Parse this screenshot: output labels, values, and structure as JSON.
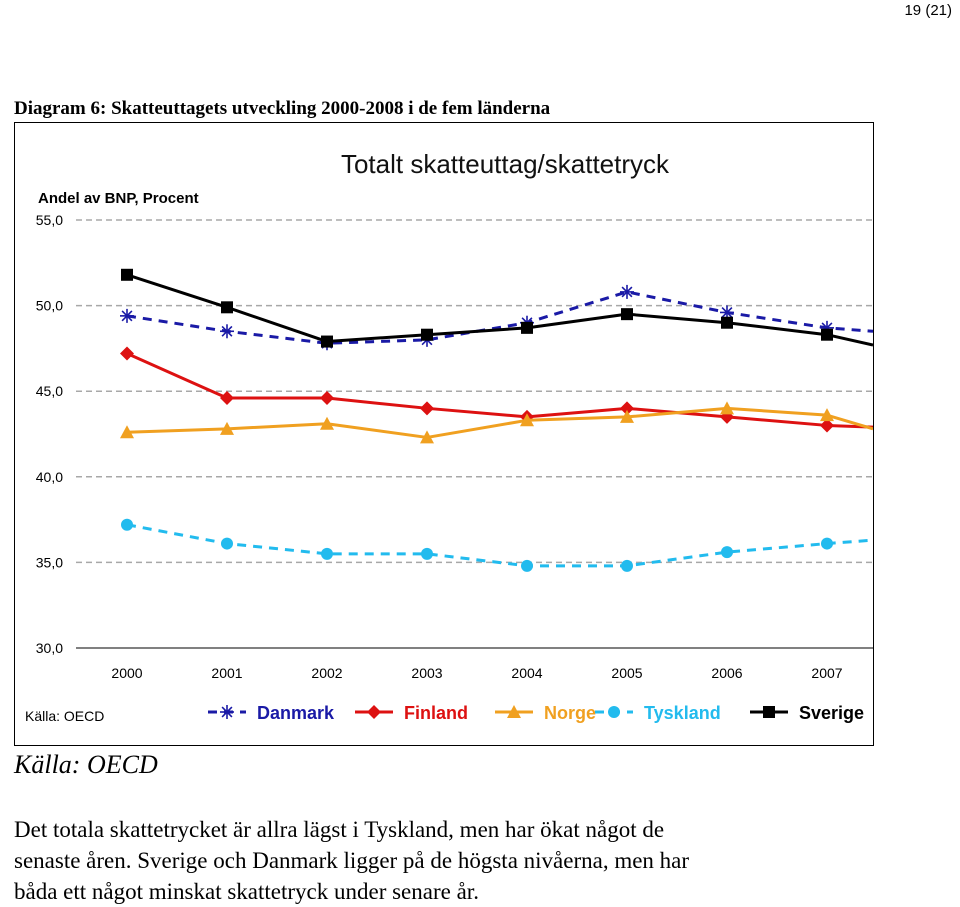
{
  "page": {
    "number_label": "19 (21)"
  },
  "caption": "Diagram 6: Skatteuttagets utveckling 2000-2008 i de fem länderna",
  "chart_data": {
    "type": "line",
    "title": "Totalt skatteuttag/skattetryck",
    "ylabel": "Andel av BNP, Procent",
    "source_label": "Källa: OECD",
    "categories": [
      "2000",
      "2001",
      "2002",
      "2003",
      "2004",
      "2005",
      "2006",
      "2007"
    ],
    "x_labels": [
      "2000",
      "2001",
      "2002",
      "2003",
      "2004",
      "2005",
      "2006",
      "2007"
    ],
    "yticks": [
      30,
      35,
      40,
      45,
      50,
      55
    ],
    "ytick_labels": [
      "30,0",
      "35,0",
      "40,0",
      "45,0",
      "50,0",
      "55,0"
    ],
    "ylim": [
      30,
      55
    ],
    "grid": true,
    "legend_position": "bottom",
    "series": [
      {
        "name": "Danmark",
        "values": [
          49.4,
          48.5,
          47.8,
          48.0,
          49.0,
          50.8,
          49.6,
          48.7
        ],
        "end_value": 48.5,
        "color": "#1a1aa6",
        "dash": true,
        "marker": "asterisk"
      },
      {
        "name": "Finland",
        "values": [
          47.2,
          44.6,
          44.6,
          44.0,
          43.5,
          44.0,
          43.5,
          43.0
        ],
        "end_value": 42.9,
        "color": "#dd1111",
        "dash": false,
        "marker": "diamond"
      },
      {
        "name": "Norge",
        "values": [
          42.6,
          42.8,
          43.1,
          42.3,
          43.3,
          43.5,
          44.0,
          43.6
        ],
        "end_value": 42.8,
        "color": "#f0a020",
        "dash": false,
        "marker": "triangle"
      },
      {
        "name": "Tyskland",
        "values": [
          37.2,
          36.1,
          35.5,
          35.5,
          34.8,
          34.8,
          35.6,
          36.1
        ],
        "end_value": 36.3,
        "color": "#22bbee",
        "dash": true,
        "marker": "circle"
      },
      {
        "name": "Sverige",
        "values": [
          51.8,
          49.9,
          47.9,
          48.3,
          48.7,
          49.5,
          49.0,
          48.3
        ],
        "end_value": 47.7,
        "color": "#000000",
        "dash": false,
        "marker": "square"
      }
    ]
  },
  "below": {
    "source_note": "Källa: OECD",
    "paragraph_lines": [
      "Det totala skattetrycket är allra lägst i Tyskland, men har ökat något de",
      "senaste åren. Sverige och Danmark ligger på de högsta nivåerna, men har",
      "båda ett något minskat skattetryck under senare år."
    ]
  }
}
